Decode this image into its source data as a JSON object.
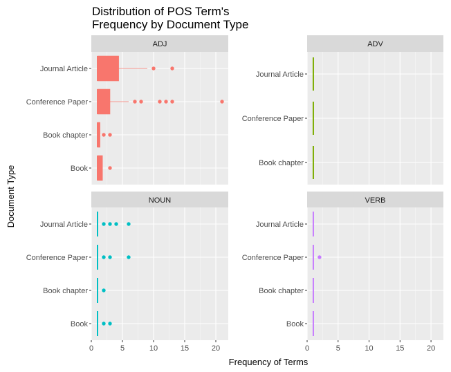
{
  "chart_data": {
    "type": "boxplot",
    "title_lines": [
      "Distribution of POS Term's",
      "Frequency by Document Type"
    ],
    "xlabel": "Frequency of Terms",
    "ylabel": "Document Type",
    "xlim": [
      0,
      22
    ],
    "x_ticks": [
      0,
      5,
      10,
      15,
      20
    ],
    "x_tick_labels": [
      "0",
      "5",
      "10",
      "15",
      "20"
    ],
    "grid": true,
    "legend": "none",
    "panels": [
      {
        "name": "ADJ",
        "color": "#F8766D",
        "categories": [
          "Journal Article",
          "Conference Paper",
          "Book chapter",
          "Book"
        ],
        "boxes": [
          {
            "min": 1,
            "q1": 1,
            "median": 1,
            "q3": 4.4,
            "max": 9,
            "outliers": [
              10,
              13
            ]
          },
          {
            "min": 1,
            "q1": 1,
            "median": 1,
            "q3": 3,
            "max": 6,
            "outliers": [
              7,
              8,
              11,
              12,
              13,
              21
            ]
          },
          {
            "min": 1,
            "q1": 1,
            "median": 1,
            "q3": 1.4,
            "max": 1.4,
            "outliers": [
              2,
              3
            ]
          },
          {
            "min": 1,
            "q1": 1,
            "median": 1,
            "q3": 1.8,
            "max": 1.8,
            "outliers": [
              3
            ]
          }
        ]
      },
      {
        "name": "ADV",
        "color": "#7CAE00",
        "categories": [
          "Journal Article",
          "Conference Paper",
          "Book chapter"
        ],
        "boxes": [
          {
            "min": 1,
            "q1": 1,
            "median": 1,
            "q3": 1,
            "max": 1,
            "outliers": []
          },
          {
            "min": 1,
            "q1": 1,
            "median": 1,
            "q3": 1,
            "max": 1,
            "outliers": []
          },
          {
            "min": 1,
            "q1": 1,
            "median": 1,
            "q3": 1,
            "max": 1,
            "outliers": []
          }
        ]
      },
      {
        "name": "NOUN",
        "color": "#00BFC4",
        "categories": [
          "Journal Article",
          "Conference Paper",
          "Book chapter",
          "Book"
        ],
        "boxes": [
          {
            "min": 1,
            "q1": 1,
            "median": 1,
            "q3": 1,
            "max": 1,
            "outliers": [
              2,
              3,
              4,
              6
            ]
          },
          {
            "min": 1,
            "q1": 1,
            "median": 1,
            "q3": 1,
            "max": 1,
            "outliers": [
              2,
              3,
              6
            ]
          },
          {
            "min": 1,
            "q1": 1,
            "median": 1,
            "q3": 1,
            "max": 1,
            "outliers": [
              2
            ]
          },
          {
            "min": 1,
            "q1": 1,
            "median": 1,
            "q3": 1,
            "max": 1,
            "outliers": [
              2,
              3
            ]
          }
        ]
      },
      {
        "name": "VERB",
        "color": "#C77CFF",
        "categories": [
          "Journal Article",
          "Conference Paper",
          "Book chapter",
          "Book"
        ],
        "boxes": [
          {
            "min": 1,
            "q1": 1,
            "median": 1,
            "q3": 1,
            "max": 1,
            "outliers": []
          },
          {
            "min": 1,
            "q1": 1,
            "median": 1,
            "q3": 1,
            "max": 1,
            "outliers": [
              2
            ]
          },
          {
            "min": 1,
            "q1": 1,
            "median": 1,
            "q3": 1,
            "max": 1,
            "outliers": []
          },
          {
            "min": 1,
            "q1": 1,
            "median": 1,
            "q3": 1,
            "max": 1,
            "outliers": []
          }
        ]
      }
    ]
  }
}
